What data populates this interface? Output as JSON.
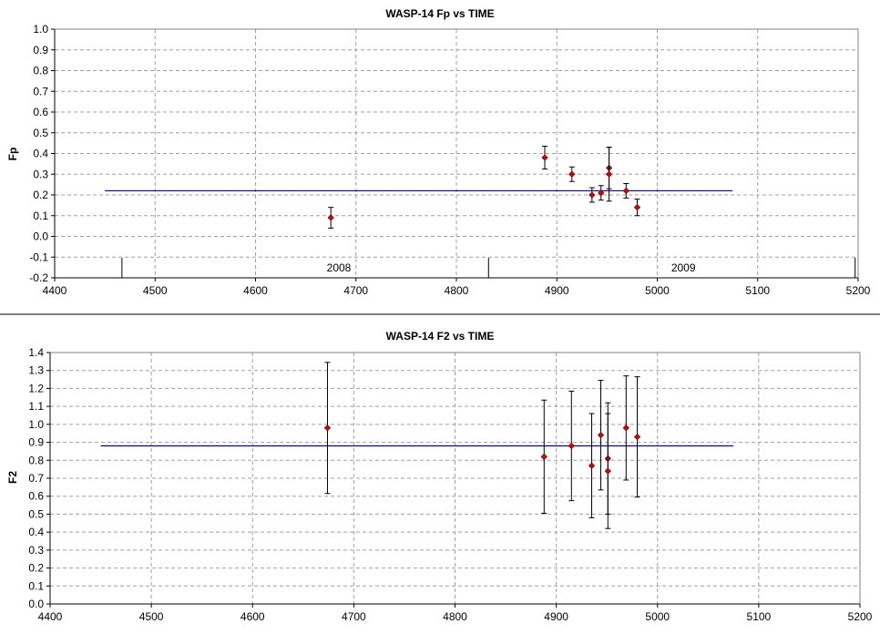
{
  "chart_data": [
    {
      "type": "scatter",
      "title": "WASP-14 Fp vs TIME",
      "xlabel": "",
      "ylabel": "Fp",
      "xlim": [
        4400,
        5200
      ],
      "ylim": [
        -0.2,
        1.0
      ],
      "xticks": [
        "4400",
        "4500",
        "4600",
        "4700",
        "4800",
        "4900",
        "5000",
        "5100",
        "5200"
      ],
      "yticks": [
        "-0.2",
        "-0.1",
        "0.0",
        "0.1",
        "0.2",
        "0.3",
        "0.4",
        "0.5",
        "0.6",
        "0.7",
        "0.8",
        "0.9",
        "1.0"
      ],
      "grid": true,
      "points": [
        {
          "x": 4675,
          "y": 0.09,
          "err": 0.05
        },
        {
          "x": 4888,
          "y": 0.38,
          "err": 0.055
        },
        {
          "x": 4915,
          "y": 0.3,
          "err": 0.035
        },
        {
          "x": 4935,
          "y": 0.2,
          "err": 0.035
        },
        {
          "x": 4944,
          "y": 0.21,
          "err": 0.035
        },
        {
          "x": 4952,
          "y": 0.33,
          "err": 0.1
        },
        {
          "x": 4952,
          "y": 0.3,
          "err": 0.13
        },
        {
          "x": 4969,
          "y": 0.22,
          "err": 0.035
        },
        {
          "x": 4980,
          "y": 0.14,
          "err": 0.04
        }
      ],
      "fit_line": {
        "x0": 4450,
        "x1": 5075,
        "y": 0.22
      },
      "year_markers": [
        {
          "label": "2008",
          "x": 4467,
          "label_x": 4683
        },
        {
          "label": "2009",
          "x": 4832,
          "label_x": 5026
        },
        {
          "label": "",
          "x": 5197
        }
      ]
    },
    {
      "type": "scatter",
      "title": "WASP-14 F2 vs TIME",
      "xlabel": "",
      "ylabel": "F2",
      "xlim": [
        4400,
        5200
      ],
      "ylim": [
        0.0,
        1.4
      ],
      "xticks": [
        "4400",
        "4500",
        "4600",
        "4700",
        "4800",
        "4900",
        "5000",
        "5100",
        "5200"
      ],
      "yticks": [
        "0.0",
        "0.1",
        "0.2",
        "0.3",
        "0.4",
        "0.5",
        "0.6",
        "0.7",
        "0.8",
        "0.9",
        "1.0",
        "1.1",
        "1.2",
        "1.3",
        "1.4"
      ],
      "grid": true,
      "points": [
        {
          "x": 4674,
          "y": 0.98,
          "err": 0.365
        },
        {
          "x": 4888,
          "y": 0.82,
          "err": 0.315
        },
        {
          "x": 4915,
          "y": 0.88,
          "err": 0.305
        },
        {
          "x": 4935,
          "y": 0.77,
          "err": 0.29
        },
        {
          "x": 4944,
          "y": 0.94,
          "err": 0.305
        },
        {
          "x": 4951,
          "y": 0.81,
          "err": 0.31
        },
        {
          "x": 4951,
          "y": 0.74,
          "err": 0.32
        },
        {
          "x": 4969,
          "y": 0.98,
          "err": 0.29
        },
        {
          "x": 4980,
          "y": 0.93,
          "err": 0.335
        }
      ],
      "fit_line": {
        "x0": 4450,
        "x1": 5075,
        "y": 0.88
      }
    }
  ]
}
